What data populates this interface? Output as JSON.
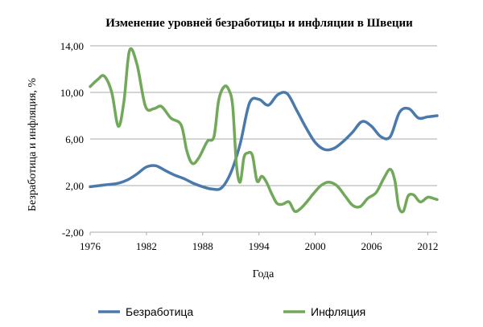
{
  "chart_data": {
    "type": "line",
    "title": "Изменение уровней безработицы и инфляции в Швеции",
    "xlabel": "Года",
    "ylabel": "Безработица и инфляция, %",
    "xlim": [
      1976,
      2013
    ],
    "ylim": [
      -2,
      14
    ],
    "x_ticks": [
      "1976",
      "1982",
      "1988",
      "1994",
      "2000",
      "2006",
      "2012"
    ],
    "y_ticks": [
      "-2,00",
      "2,00",
      "6,00",
      "10,00",
      "14,00"
    ],
    "grid": "horizontal",
    "legend": "bottom",
    "series": [
      {
        "name": "Безработица",
        "color": "#4a7aab",
        "x": [
          1976,
          1977,
          1978,
          1979,
          1980,
          1981,
          1982,
          1983,
          1984,
          1985,
          1986,
          1987,
          1988,
          1989,
          1990,
          1991,
          1992,
          1993,
          1994,
          1995,
          1996,
          1997,
          1998,
          1999,
          2000,
          2001,
          2002,
          2003,
          2004,
          2005,
          2006,
          2007,
          2008,
          2009,
          2010,
          2011,
          2012,
          2013
        ],
        "values": [
          1.9,
          2.0,
          2.1,
          2.2,
          2.5,
          3.0,
          3.6,
          3.7,
          3.3,
          2.9,
          2.6,
          2.2,
          1.9,
          1.7,
          1.8,
          3.1,
          5.6,
          9.1,
          9.4,
          8.9,
          9.8,
          9.9,
          8.5,
          7.0,
          5.7,
          5.1,
          5.2,
          5.8,
          6.6,
          7.5,
          7.1,
          6.2,
          6.2,
          8.3,
          8.6,
          7.8,
          7.9,
          8.0
        ]
      },
      {
        "name": "Инфляция",
        "color": "#71a85a",
        "x": [
          1976,
          1976.8,
          1977.5,
          1978.3,
          1979,
          1979.6,
          1980.2,
          1981,
          1981.9,
          1982.8,
          1983.6,
          1984.6,
          1985.7,
          1986.3,
          1986.9,
          1987.6,
          1988.5,
          1989.2,
          1989.7,
          1990.3,
          1990.8,
          1991.2,
          1991.6,
          1992.0,
          1992.4,
          1992.8,
          1993.3,
          1993.8,
          1994.3,
          1994.8,
          1995.3,
          1995.9,
          1996.5,
          1997.2,
          1997.8,
          1998.4,
          1999.1,
          1999.8,
          2000.6,
          2001.4,
          2002.3,
          2003.2,
          2004.0,
          2004.8,
          2005.6,
          2006.5,
          2007.3,
          2008.0,
          2008.5,
          2008.9,
          2009.4,
          2009.9,
          2010.5,
          2011.2,
          2012.0,
          2012.6,
          2013.0
        ],
        "values": [
          10.5,
          11.1,
          11.4,
          10.0,
          7.1,
          9.2,
          13.6,
          12.4,
          8.8,
          8.6,
          8.8,
          7.8,
          7.2,
          5.0,
          3.9,
          4.4,
          5.8,
          6.2,
          9.3,
          10.5,
          10.2,
          8.8,
          3.8,
          2.3,
          4.4,
          4.8,
          4.6,
          2.4,
          2.8,
          2.3,
          1.4,
          0.5,
          0.4,
          0.6,
          -0.2,
          0.0,
          0.6,
          1.3,
          2.0,
          2.3,
          2.0,
          1.1,
          0.3,
          0.2,
          0.9,
          1.4,
          2.6,
          3.4,
          2.4,
          0.2,
          -0.2,
          1.1,
          1.2,
          0.6,
          1.0,
          0.9,
          0.8
        ]
      }
    ]
  }
}
